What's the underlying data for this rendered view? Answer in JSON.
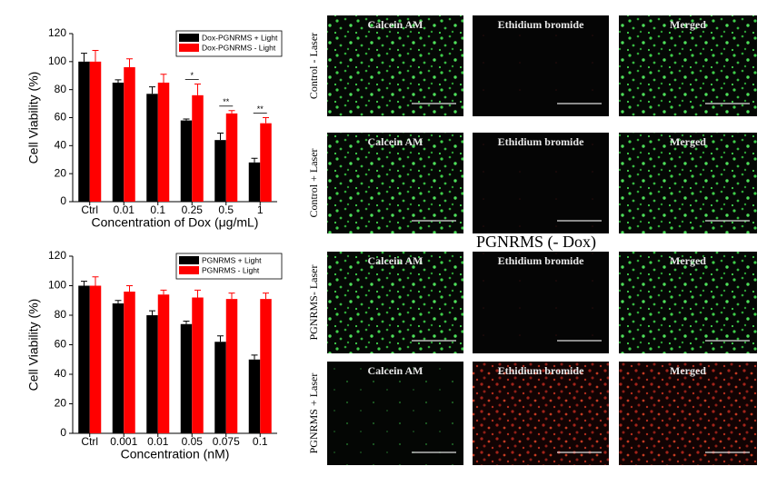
{
  "chart_data": [
    {
      "type": "bar",
      "ylabel": "Cell Viability (%)",
      "xlabel": "Concentration of Dox (μg/mL)",
      "categories": [
        "Ctrl",
        "0.01",
        "0.1",
        "0.25",
        "0.5",
        "1"
      ],
      "series": [
        {
          "name": "Dox-PGNRMS + Light",
          "color": "#000000",
          "values": [
            100,
            85,
            77,
            58,
            44,
            28
          ],
          "errors": [
            6,
            2,
            5,
            1,
            5,
            3
          ]
        },
        {
          "name": "Dox-PGNRMS - Light",
          "color": "#ff0000",
          "values": [
            100,
            96,
            85,
            76,
            63,
            56
          ],
          "errors": [
            8,
            6,
            6,
            8,
            2,
            4
          ]
        }
      ],
      "annotations": [
        {
          "text": "*",
          "category": "0.25"
        },
        {
          "text": "**",
          "category": "0.5"
        },
        {
          "text": "**",
          "category": "1"
        }
      ],
      "ylim": [
        0,
        120
      ],
      "yticks": [
        0,
        20,
        40,
        60,
        80,
        100,
        120
      ],
      "legend": "upper right"
    },
    {
      "type": "bar",
      "ylabel": "Cell Viability (%)",
      "xlabel": "Concentration (nM)",
      "categories": [
        "Ctrl",
        "0.001",
        "0.01",
        "0.05",
        "0.075",
        "0.1"
      ],
      "series": [
        {
          "name": "PGNRMS + Light",
          "color": "#000000",
          "values": [
            100,
            88,
            80,
            74,
            62,
            50
          ],
          "errors": [
            3,
            2,
            3,
            2,
            4,
            3
          ]
        },
        {
          "name": "PGNRMS - Light",
          "color": "#ff0000",
          "values": [
            100,
            96,
            94,
            92,
            91,
            91
          ],
          "errors": [
            6,
            4,
            3,
            5,
            4,
            4
          ]
        }
      ],
      "ylim": [
        0,
        120
      ],
      "yticks": [
        0,
        20,
        40,
        60,
        80,
        100,
        120
      ],
      "legend": "upper right"
    }
  ],
  "micrographs": {
    "heading": "PGNRMS (- Dox)",
    "rows": [
      {
        "label": "Control - Laser",
        "panels": [
          "Calcein AM",
          "Ethidium bromide",
          "Merged"
        ]
      },
      {
        "label": "Control + Laser",
        "panels": [
          "Calcein AM",
          "Ethidium bromide",
          "Merged"
        ]
      },
      {
        "label": "PGNRMS- Laser",
        "panels": [
          "Calcein AM",
          "Ethidium bromide",
          "Merged"
        ]
      },
      {
        "label": "PGNRMS + Laser",
        "panels": [
          "Calcein AM",
          "Ethidium bromide",
          "Merged"
        ]
      }
    ]
  }
}
